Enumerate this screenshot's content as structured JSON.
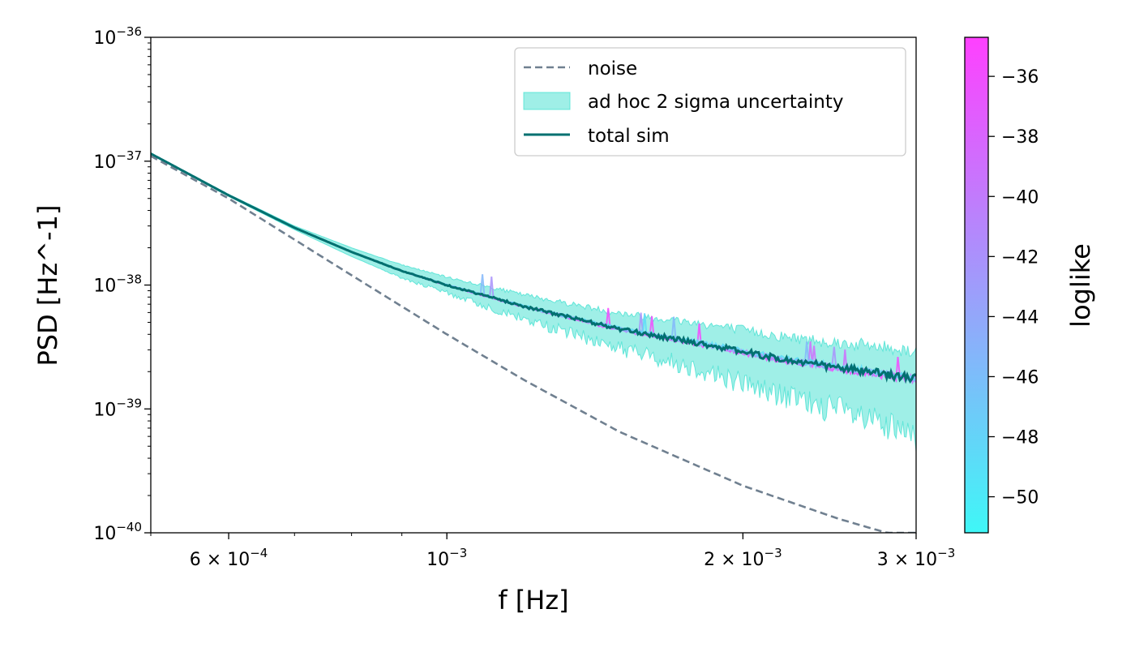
{
  "chart_data": {
    "type": "line",
    "title": "",
    "xlabel": "f [Hz]",
    "ylabel": "PSD [Hz^-1]",
    "xscale": "log",
    "yscale": "log",
    "xlim": [
      0.0005,
      0.003
    ],
    "ylim": [
      1e-40,
      1e-36
    ],
    "x_ticks": [
      {
        "value": 0.0006,
        "label": "6 × 10",
        "exp": "−4"
      },
      {
        "value": 0.001,
        "label": "10",
        "exp": "−3"
      },
      {
        "value": 0.002,
        "label": "2 × 10",
        "exp": "−3"
      },
      {
        "value": 0.003,
        "label": "3 × 10",
        "exp": "−3"
      }
    ],
    "y_ticks": [
      {
        "value": 1e-40,
        "label": "10",
        "exp": "−40"
      },
      {
        "value": 1e-39,
        "label": "10",
        "exp": "−39"
      },
      {
        "value": 1e-38,
        "label": "10",
        "exp": "−38"
      },
      {
        "value": 1e-37,
        "label": "10",
        "exp": "−37"
      },
      {
        "value": 1e-36,
        "label": "10",
        "exp": "−36"
      }
    ],
    "legend": {
      "position": "top-right",
      "entries": [
        "noise",
        "ad hoc 2 sigma uncertainty",
        "total sim"
      ]
    },
    "series": [
      {
        "name": "noise",
        "style": "dashed",
        "color": "#708090",
        "x": [
          0.0005,
          0.0006,
          0.0008,
          0.001,
          0.0012,
          0.0015,
          0.002,
          0.0025,
          0.0028
        ],
        "y": [
          1.1e-37,
          5e-38,
          1.2e-38,
          4e-39,
          1.7e-39,
          6.5e-40,
          2.4e-40,
          1.3e-40,
          1e-40
        ]
      },
      {
        "name": "total sim",
        "style": "solid",
        "color": "#007070",
        "x": [
          0.0005,
          0.0006,
          0.0007,
          0.0008,
          0.0009,
          0.001,
          0.0012,
          0.0015,
          0.0018,
          0.002,
          0.0022,
          0.0025,
          0.0028,
          0.003
        ],
        "y": [
          1.15e-37,
          5.3e-38,
          2.9e-38,
          1.85e-38,
          1.3e-38,
          1e-38,
          6.7e-39,
          4.4e-39,
          3.4e-39,
          2.9e-39,
          2.5e-39,
          2.15e-39,
          1.9e-39,
          1.75e-39
        ]
      },
      {
        "name": "ad hoc 2 sigma uncertainty",
        "type": "band",
        "color": "#40e0d0",
        "x": [
          0.0005,
          0.0006,
          0.0007,
          0.0008,
          0.0009,
          0.001,
          0.0012,
          0.0015,
          0.0018,
          0.002,
          0.0022,
          0.0025,
          0.0028,
          0.003
        ],
        "y_upper": [
          1.16e-37,
          5.4e-38,
          3e-38,
          2e-38,
          1.45e-38,
          1.15e-38,
          8.2e-39,
          5.8e-39,
          4.8e-39,
          4.2e-39,
          3.7e-39,
          3.3e-39,
          3e-39,
          2.8e-39
        ],
        "y_lower": [
          1.14e-37,
          5.2e-38,
          2.8e-38,
          1.7e-38,
          1.15e-38,
          8.8e-39,
          5.5e-39,
          3.3e-39,
          2.3e-39,
          1.8e-39,
          1.4e-39,
          1.1e-39,
          8e-40,
          6.5e-40
        ]
      }
    ],
    "colorbar": {
      "label": "loglike",
      "range": [
        -51.2,
        -34.7
      ],
      "ticks": [
        -36,
        -38,
        -40,
        -42,
        -44,
        -46,
        -48,
        -50
      ],
      "tick_labels": [
        "−36",
        "−38",
        "−40",
        "−42",
        "−44",
        "−46",
        "−48",
        "−50"
      ],
      "color_low": "#3ff7f7",
      "color_high": "#ff40ff"
    }
  }
}
